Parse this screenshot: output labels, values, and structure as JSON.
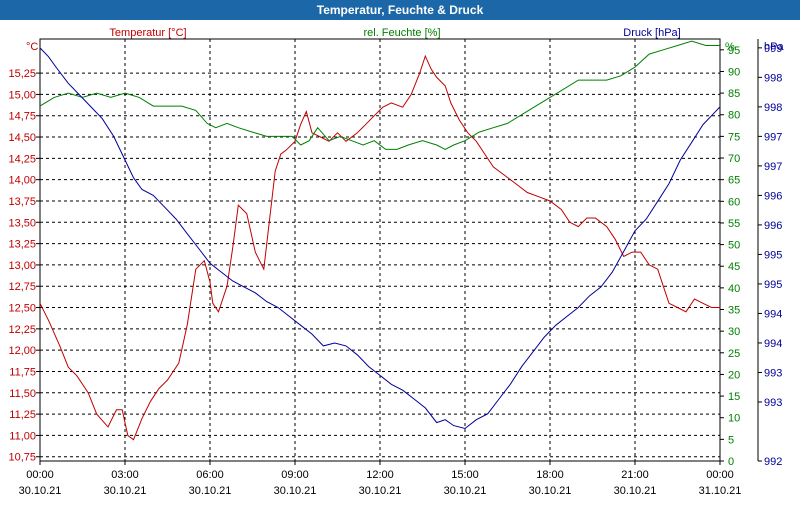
{
  "title": "Temperatur, Feuchte & Druck",
  "colors": {
    "title_bg": "#1b67a8",
    "temperature": "#c00000",
    "humidity": "#008000",
    "pressure": "#000099",
    "grid": "#000000"
  },
  "axis_labels": {
    "temp_unit": "°C",
    "temp_name": "Temperatur [°C]",
    "hum_name": "rel. Feuchte [%]",
    "hum_unit": "%",
    "press_name": "Druck [hPa]",
    "press_unit": "hPa"
  },
  "chart_data": {
    "type": "line",
    "title": "Temperatur, Feuchte & Druck",
    "x_hours": [
      0,
      3,
      6,
      9,
      12,
      15,
      18,
      21,
      24
    ],
    "x_ticks": [
      {
        "time": "00:00",
        "date": "30.10.21"
      },
      {
        "time": "03:00",
        "date": "30.10.21"
      },
      {
        "time": "06:00",
        "date": "30.10.21"
      },
      {
        "time": "09:00",
        "date": "30.10.21"
      },
      {
        "time": "12:00",
        "date": "30.10.21"
      },
      {
        "time": "15:00",
        "date": "30.10.21"
      },
      {
        "time": "18:00",
        "date": "30.10.21"
      },
      {
        "time": "21:00",
        "date": "30.10.21"
      },
      {
        "time": "00:00",
        "date": "31.10.21"
      }
    ],
    "xlim": [
      0,
      24
    ],
    "y_temp": {
      "ylim": [
        10.7,
        15.65
      ],
      "ticks": [
        "15,25",
        "15,00",
        "14,75",
        "14,50",
        "14,25",
        "14,00",
        "13,75",
        "13,50",
        "13,25",
        "13,00",
        "12,75",
        "12,50",
        "12,25",
        "12,00",
        "11,75",
        "11,50",
        "11,25",
        "11,00",
        "10,75"
      ],
      "tick_values": [
        15.25,
        15.0,
        14.75,
        14.5,
        14.25,
        14.0,
        13.75,
        13.5,
        13.25,
        13.0,
        12.75,
        12.5,
        12.25,
        12.0,
        11.75,
        11.5,
        11.25,
        11.0,
        10.75
      ]
    },
    "y_hum": {
      "ylim": [
        0,
        97.5
      ],
      "ticks": [
        "95",
        "90",
        "85",
        "80",
        "75",
        "70",
        "65",
        "60",
        "55",
        "50",
        "45",
        "40",
        "35",
        "30",
        "25",
        "20",
        "15",
        "10",
        "5",
        "0"
      ],
      "tick_values": [
        95,
        90,
        85,
        80,
        75,
        70,
        65,
        60,
        55,
        50,
        45,
        40,
        35,
        30,
        25,
        20,
        15,
        10,
        5,
        0
      ]
    },
    "y_press": {
      "ylim": [
        992.0,
        999.15
      ],
      "ticks": [
        "999",
        "998",
        "998",
        "997",
        "997",
        "996",
        "996",
        "995",
        "995",
        "994",
        "994",
        "993",
        "993",
        "992"
      ],
      "tick_values": [
        999.0,
        998.5,
        998.0,
        997.5,
        997.0,
        996.5,
        996.0,
        995.5,
        995.0,
        994.5,
        994.0,
        993.5,
        993.0,
        992.0
      ]
    },
    "series": [
      {
        "name": "Temperatur [°C]",
        "axis": "temp",
        "x": [
          0,
          0.3,
          0.7,
          1.0,
          1.3,
          1.7,
          2.0,
          2.4,
          2.7,
          2.9,
          3.1,
          3.3,
          3.6,
          3.9,
          4.2,
          4.5,
          4.9,
          5.2,
          5.5,
          5.8,
          6.0,
          6.1,
          6.3,
          6.6,
          6.8,
          7.0,
          7.3,
          7.6,
          7.9,
          8.3,
          8.5,
          8.7,
          9.0,
          9.2,
          9.4,
          9.6,
          9.9,
          10.2,
          10.5,
          10.8,
          11.2,
          11.5,
          11.8,
          12.1,
          12.4,
          12.8,
          13.1,
          13.4,
          13.6,
          13.8,
          14.0,
          14.3,
          14.5,
          14.8,
          15.1,
          15.4,
          15.7,
          16.0,
          16.4,
          16.8,
          17.2,
          17.6,
          18.0,
          18.4,
          18.7,
          19.0,
          19.3,
          19.6,
          20.0,
          20.3,
          20.6,
          20.9,
          21.2,
          21.5,
          21.8,
          22.0,
          22.2,
          22.5,
          22.8,
          23.1,
          23.4,
          23.7,
          24.0
        ],
        "y": [
          12.55,
          12.35,
          12.05,
          11.8,
          11.7,
          11.5,
          11.25,
          11.1,
          11.3,
          11.3,
          11.0,
          10.95,
          11.2,
          11.4,
          11.55,
          11.65,
          11.85,
          12.3,
          12.95,
          13.05,
          12.8,
          12.55,
          12.45,
          12.75,
          13.2,
          13.7,
          13.6,
          13.15,
          12.95,
          14.1,
          14.3,
          14.35,
          14.45,
          14.65,
          14.8,
          14.55,
          14.5,
          14.45,
          14.55,
          14.45,
          14.55,
          14.65,
          14.75,
          14.85,
          14.9,
          14.85,
          15.0,
          15.25,
          15.45,
          15.3,
          15.2,
          15.1,
          14.9,
          14.7,
          14.55,
          14.45,
          14.3,
          14.15,
          14.05,
          13.95,
          13.85,
          13.8,
          13.75,
          13.65,
          13.5,
          13.45,
          13.55,
          13.55,
          13.45,
          13.3,
          13.1,
          13.15,
          13.15,
          13.0,
          12.95,
          12.75,
          12.55,
          12.5,
          12.45,
          12.6,
          12.55,
          12.5,
          12.5
        ]
      },
      {
        "name": "rel. Feuchte [%]",
        "axis": "hum",
        "x": [
          0,
          0.5,
          1.0,
          1.5,
          2.0,
          2.5,
          3.0,
          3.5,
          4.0,
          4.5,
          5.0,
          5.5,
          5.9,
          6.2,
          6.6,
          7.0,
          7.5,
          8.0,
          8.5,
          8.9,
          9.2,
          9.5,
          9.8,
          10.2,
          10.6,
          11.0,
          11.4,
          11.8,
          12.2,
          12.6,
          13.0,
          13.5,
          14.0,
          14.3,
          14.6,
          15.0,
          15.5,
          16.0,
          16.5,
          17.0,
          17.5,
          18.0,
          18.5,
          19.0,
          19.5,
          20.0,
          20.5,
          21.0,
          21.5,
          22.0,
          22.5,
          23.0,
          23.5,
          24.0
        ],
        "y": [
          82,
          84,
          85,
          84,
          85,
          84,
          85,
          84,
          82,
          82,
          82,
          81,
          78,
          77,
          78,
          77,
          76,
          75,
          75,
          75,
          73,
          74,
          77,
          74,
          75,
          74,
          73,
          74,
          72,
          72,
          73,
          74,
          73,
          72,
          73,
          74,
          76,
          77,
          78,
          80,
          82,
          84,
          86,
          88,
          88,
          88,
          89,
          91,
          94,
          95,
          96,
          97,
          96,
          96
        ]
      },
      {
        "name": "Druck [hPa]",
        "axis": "press",
        "x": [
          0,
          0.3,
          0.6,
          1.0,
          1.4,
          1.8,
          2.2,
          2.6,
          3.0,
          3.3,
          3.6,
          4.0,
          4.4,
          4.8,
          5.2,
          5.6,
          6.0,
          6.4,
          6.8,
          7.2,
          7.6,
          8.0,
          8.4,
          8.8,
          9.2,
          9.6,
          10.0,
          10.4,
          10.8,
          11.2,
          11.6,
          12.0,
          12.4,
          12.8,
          13.2,
          13.6,
          14.0,
          14.3,
          14.6,
          15.0,
          15.4,
          15.8,
          16.2,
          16.6,
          17.0,
          17.4,
          17.8,
          18.2,
          18.6,
          19.0,
          19.4,
          19.8,
          20.2,
          20.6,
          21.0,
          21.4,
          21.8,
          22.2,
          22.6,
          23.0,
          23.4,
          23.8,
          24.0
        ],
        "y": [
          999.0,
          998.85,
          998.65,
          998.4,
          998.2,
          998.0,
          997.8,
          997.5,
          997.1,
          996.8,
          996.6,
          996.5,
          996.3,
          996.1,
          995.85,
          995.6,
          995.35,
          995.2,
          995.05,
          994.95,
          994.85,
          994.7,
          994.6,
          994.45,
          994.3,
          994.15,
          993.95,
          994.0,
          993.95,
          993.8,
          993.6,
          993.45,
          993.3,
          993.2,
          993.05,
          992.9,
          992.65,
          992.7,
          992.6,
          992.55,
          992.7,
          992.8,
          993.05,
          993.3,
          993.6,
          993.85,
          994.1,
          994.3,
          994.45,
          994.6,
          994.8,
          994.95,
          995.2,
          995.55,
          995.9,
          996.1,
          996.4,
          996.7,
          997.1,
          997.4,
          997.7,
          997.9,
          998.0
        ]
      }
    ]
  }
}
